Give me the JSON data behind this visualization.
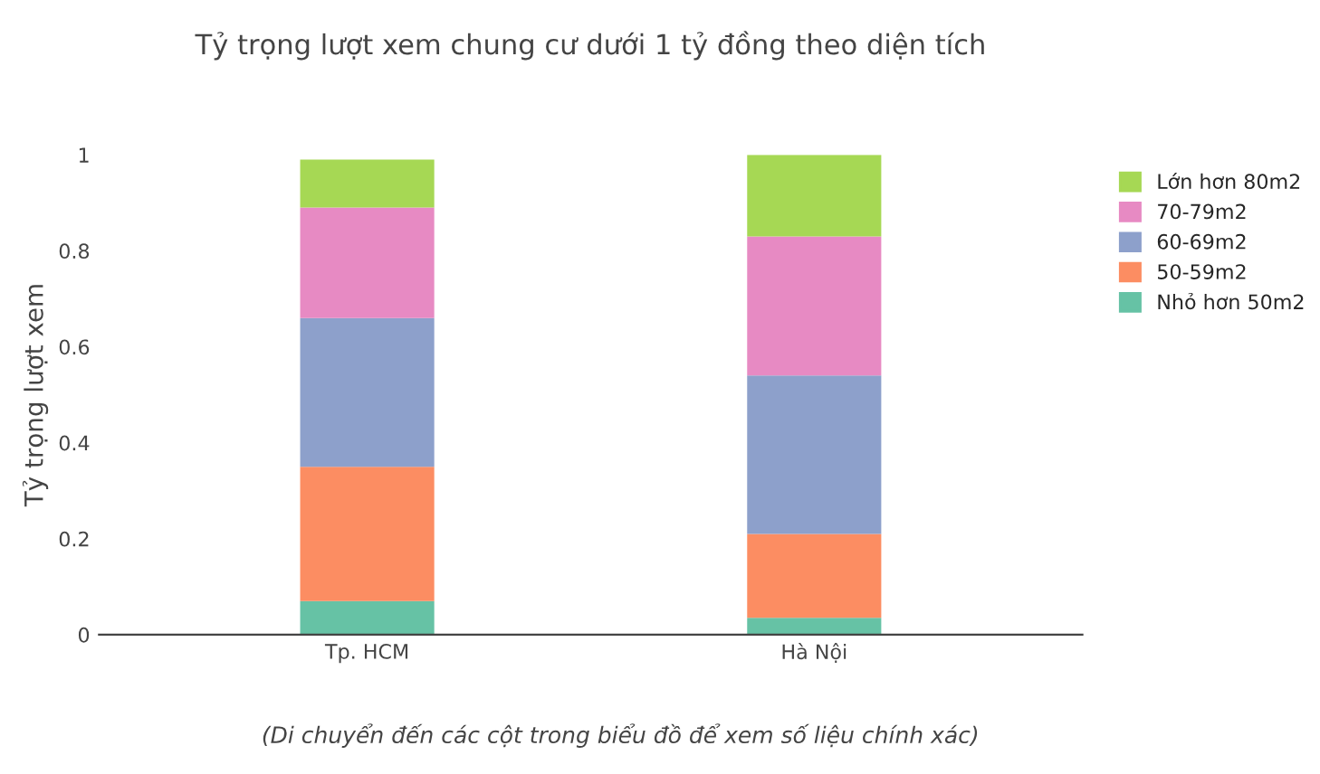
{
  "chart_data": {
    "type": "bar",
    "title": "Tỷ trọng lượt xem chung cư dưới 1 tỷ đồng theo diện tích",
    "ylabel": "Tỷ trọng lượt xem",
    "categories": [
      "Tp. HCM",
      "Hà Nội"
    ],
    "stacked": true,
    "series": [
      {
        "name": "Nhỏ hơn 50m2",
        "color": "#66c2a5",
        "values": [
          0.07,
          0.035
        ]
      },
      {
        "name": "50-59m2",
        "color": "#fc8d62",
        "values": [
          0.28,
          0.175
        ]
      },
      {
        "name": "60-69m2",
        "color": "#8da0cb",
        "values": [
          0.31,
          0.33
        ]
      },
      {
        "name": "70-79m2",
        "color": "#e78ac3",
        "values": [
          0.23,
          0.29
        ]
      },
      {
        "name": "Lớn hơn 80m2",
        "color": "#a6d854",
        "values": [
          0.1,
          0.17
        ]
      }
    ],
    "ylim": [
      0,
      1
    ],
    "yticks": [
      0,
      0.2,
      0.4,
      0.6,
      0.8,
      1
    ],
    "grid": false,
    "legend": "right",
    "annotations": [
      "(Di chuyển đến các cột trong biểu đồ để xem số liệu chính xác)"
    ]
  }
}
